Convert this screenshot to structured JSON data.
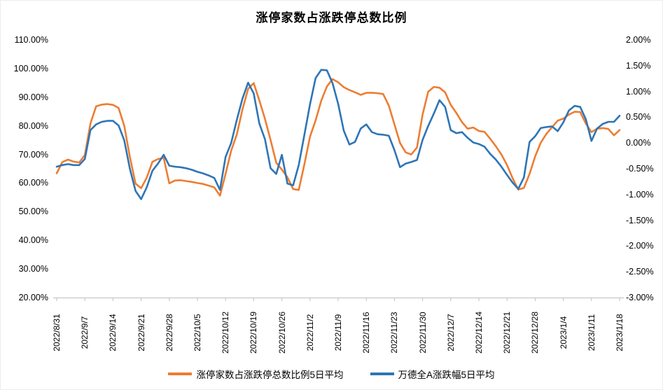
{
  "chart_data": {
    "type": "line",
    "title": "涨停家数占涨跌停总数比例",
    "grid": false,
    "legend_position": "bottom",
    "x_labels": [
      "2022/8/31",
      "2022/9/7",
      "2022/9/14",
      "2022/9/21",
      "2022/9/28",
      "2022/10/5",
      "2022/10/12",
      "2022/10/19",
      "2022/10/26",
      "2022/11/2",
      "2022/11/9",
      "2022/11/16",
      "2022/11/23",
      "2022/11/30",
      "2022/12/7",
      "2022/12/14",
      "2022/12/21",
      "2022/12/28",
      "2023/1/4",
      "2023/1/11",
      "2023/1/18"
    ],
    "left_axis": {
      "min": 20,
      "max": 110,
      "step": 10,
      "ticks": [
        "110.00%",
        "100.00%",
        "90.00%",
        "80.00%",
        "70.00%",
        "60.00%",
        "50.00%",
        "40.00%",
        "30.00%",
        "20.00%"
      ]
    },
    "right_axis": {
      "min": -3,
      "max": 2,
      "step": 0.5,
      "ticks": [
        "2.00%",
        "1.50%",
        "1.00%",
        "0.50%",
        "0.00%",
        "-0.50%",
        "-1.00%",
        "-1.50%",
        "-2.00%",
        "-2.50%",
        "-3.00%"
      ]
    },
    "axis_color": "#bfbfbf",
    "series": [
      {
        "name": "涨停家数占涨跌停总数比例5日平均",
        "color": "#ED7D31",
        "axis": "left",
        "unit": "%",
        "values": [
          63.4,
          67.3,
          68.2,
          67.5,
          67.2,
          69.8,
          80.8,
          86.8,
          87.4,
          87.6,
          87.3,
          86.2,
          80.0,
          69.1,
          59.8,
          58.2,
          61.9,
          67.4,
          68.4,
          68.8,
          59.9,
          60.9,
          61.0,
          60.7,
          60.4,
          60.0,
          59.7,
          59.1,
          58.5,
          55.6,
          63.2,
          71.3,
          77.0,
          85.7,
          92.9,
          94.9,
          88.9,
          82.4,
          75.0,
          67.1,
          64.7,
          62.0,
          57.9,
          57.6,
          66.6,
          76.2,
          81.9,
          88.8,
          93.7,
          96.3,
          95.2,
          93.5,
          92.5,
          91.7,
          90.8,
          91.5,
          91.5,
          91.4,
          91.1,
          87.0,
          80.5,
          74.0,
          70.7,
          70.0,
          72.4,
          83.9,
          91.9,
          93.6,
          93.3,
          91.7,
          87.3,
          84.5,
          81.3,
          79.0,
          79.4,
          78.2,
          77.9,
          75.5,
          72.9,
          70.0,
          66.3,
          61.7,
          57.7,
          58.3,
          63.2,
          69.3,
          74.1,
          77.2,
          79.5,
          81.8,
          82.5,
          83.9,
          84.9,
          84.8,
          80.8,
          77.8,
          79.0,
          79.2,
          78.9,
          76.7,
          78.5
        ]
      },
      {
        "name": "万德全A涨跌幅5日平均",
        "color": "#2E75B6",
        "axis": "right",
        "unit": "%",
        "values": [
          -0.46,
          -0.43,
          -0.41,
          -0.43,
          -0.43,
          -0.31,
          0.25,
          0.36,
          0.41,
          0.43,
          0.43,
          0.34,
          0.05,
          -0.5,
          -0.93,
          -1.09,
          -0.86,
          -0.54,
          -0.4,
          -0.23,
          -0.44,
          -0.46,
          -0.47,
          -0.49,
          -0.52,
          -0.56,
          -0.59,
          -0.63,
          -0.68,
          -0.91,
          -0.27,
          0.0,
          0.45,
          0.86,
          1.17,
          0.96,
          0.38,
          0.07,
          -0.49,
          -0.6,
          -0.23,
          -0.79,
          -0.82,
          -0.43,
          0.16,
          0.75,
          1.26,
          1.42,
          1.41,
          1.16,
          0.76,
          0.24,
          -0.03,
          0.02,
          0.28,
          0.36,
          0.21,
          0.17,
          0.16,
          0.14,
          -0.14,
          -0.47,
          -0.4,
          -0.37,
          -0.33,
          0.06,
          0.33,
          0.57,
          0.83,
          0.7,
          0.25,
          0.19,
          0.21,
          0.1,
          0.01,
          -0.02,
          -0.07,
          -0.21,
          -0.32,
          -0.46,
          -0.62,
          -0.77,
          -0.89,
          -0.67,
          0.02,
          0.13,
          0.29,
          0.31,
          0.32,
          0.23,
          0.4,
          0.63,
          0.72,
          0.7,
          0.46,
          0.04,
          0.28,
          0.37,
          0.41,
          0.41,
          0.53
        ]
      }
    ]
  }
}
